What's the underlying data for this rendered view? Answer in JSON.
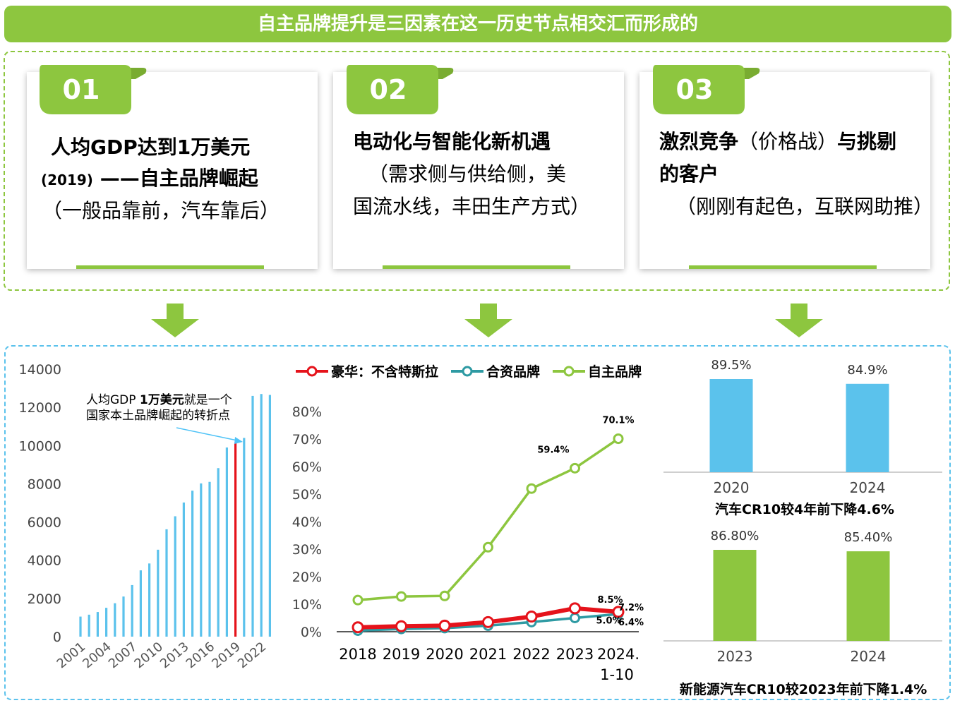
{
  "banner": {
    "title": "自主品牌提升是三因素在这一历史节点相交汇而形成的"
  },
  "cards": [
    {
      "number": "01",
      "line1": "人均GDP达到1万美元",
      "line2_small": "(2019)",
      "line2_rest": " ——自主品牌崛起",
      "line3": "（一般品靠前，汽车靠后）"
    },
    {
      "number": "02",
      "line1": "电动化与智能化新机遇",
      "line2": "（需求侧与供给侧，美",
      "line3": "国流水线，丰田生产方式）"
    },
    {
      "number": "03",
      "line1_bold_a": "激烈竞争",
      "line1_normal": "（价格战）",
      "line1_bold_b": "与挑剔",
      "line2": "的客户",
      "line3": "（刚刚有起色，互联网助推）"
    }
  ],
  "colors": {
    "green": "#8dc63f",
    "blue_bar": "#5bc2ec",
    "red": "#e5131b",
    "teal": "#2e9aa3",
    "cyan": "#4fc3f7"
  },
  "chart_data": [
    {
      "type": "bar",
      "ylim": [
        0,
        14000
      ],
      "yticks": [
        0,
        2000,
        4000,
        6000,
        8000,
        10000,
        12000,
        14000
      ],
      "xtick_labels": [
        "2001",
        "2004",
        "2007",
        "2010",
        "2013",
        "2016",
        "2019",
        "2022"
      ],
      "categories": [
        "2001",
        "2002",
        "2003",
        "2004",
        "2005",
        "2006",
        "2007",
        "2008",
        "2009",
        "2010",
        "2011",
        "2012",
        "2013",
        "2014",
        "2015",
        "2016",
        "2017",
        "2018",
        "2019",
        "2020",
        "2021",
        "2022",
        "2023"
      ],
      "values": [
        1050,
        1150,
        1290,
        1510,
        1750,
        2100,
        2700,
        3470,
        3830,
        4550,
        5620,
        6300,
        7020,
        7640,
        8020,
        8100,
        8820,
        9900,
        10150,
        10400,
        12600,
        12700,
        12650
      ],
      "highlight_category": "2019",
      "annotation_line1_a": "人均GDP ",
      "annotation_line1_b": "1万美元",
      "annotation_line1_c": "就是一个",
      "annotation_line2": "国家本土品牌崛起的转折点"
    },
    {
      "type": "line",
      "ylim": [
        0,
        0.8
      ],
      "yticks": [
        "0%",
        "10%",
        "20%",
        "30%",
        "40%",
        "50%",
        "60%",
        "70%",
        "80%"
      ],
      "categories": [
        "2018",
        "2019",
        "2020",
        "2021",
        "2022",
        "2023",
        "2024."
      ],
      "last_category_line2": "1-10",
      "series": [
        {
          "name": "豪华：不含特斯拉",
          "color": "#e5131b",
          "values": [
            0.016,
            0.02,
            0.022,
            0.035,
            0.055,
            0.085,
            0.072
          ],
          "labels": [
            "",
            "",
            "",
            "",
            "",
            "8.5%",
            "7.2%"
          ]
        },
        {
          "name": "合资品牌",
          "color": "#2e9aa3",
          "values": [
            0.004,
            0.01,
            0.013,
            0.022,
            0.035,
            0.05,
            0.064
          ],
          "labels": [
            "",
            "",
            "",
            "",
            "",
            "5.0%",
            "6.4%"
          ]
        },
        {
          "name": "自主品牌",
          "color": "#8dc63f",
          "values": [
            0.115,
            0.128,
            0.13,
            0.307,
            0.52,
            0.594,
            0.701
          ],
          "labels": [
            "",
            "",
            "",
            "",
            "",
            "59.4%",
            "70.1%"
          ]
        }
      ]
    },
    {
      "type": "bar",
      "categories": [
        "2020",
        "2024"
      ],
      "values": [
        89.5,
        84.9
      ],
      "value_labels": [
        "89.5%",
        "84.9%"
      ],
      "caption": "汽车CR10较4年前下降4.6%"
    },
    {
      "type": "bar",
      "categories": [
        "2023",
        "2024"
      ],
      "values": [
        86.8,
        85.4
      ],
      "value_labels": [
        "86.80%",
        "85.40%"
      ],
      "caption": "新能源汽车CR10较2023年前下降1.4%"
    }
  ]
}
